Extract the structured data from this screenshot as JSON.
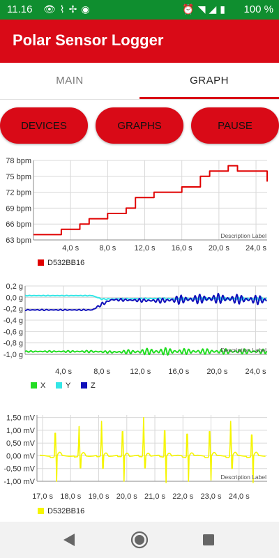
{
  "status_bar": {
    "time": "11.16",
    "battery": "100 %",
    "left_icons": [
      "eye-icon",
      "network-icon",
      "fan-icon",
      "vpn-icon"
    ],
    "right_icons": [
      "alarm-icon",
      "wifi-icon",
      "signal-icon",
      "battery-icon"
    ],
    "color": "#0f8e2f"
  },
  "app_bar": {
    "title": "Polar Sensor Logger",
    "color": "#d90a17"
  },
  "tabs": [
    {
      "label": "MAIN",
      "active": false
    },
    {
      "label": "GRAPH",
      "active": true
    }
  ],
  "buttons": {
    "devices": "DEVICES",
    "graphs": "GRAPHS",
    "pause": "PAUSE"
  },
  "chart_data": [
    {
      "type": "line",
      "x_ticks": [
        "4,0 s",
        "8,0 s",
        "12,0 s",
        "16,0 s",
        "20,0 s",
        "24,0 s"
      ],
      "y_ticks": [
        "63 bpm",
        "66 bpm",
        "69 bpm",
        "72 bpm",
        "75 bpm",
        "78 bpm"
      ],
      "xlim": [
        0,
        25.2
      ],
      "ylim": [
        63,
        78
      ],
      "description_label": "Description Label",
      "legend_position": "bottom-left",
      "series": [
        {
          "name": "D532BB16",
          "color": "#e00000",
          "x": [
            0,
            1,
            2,
            3,
            4,
            5,
            6,
            7,
            8,
            9,
            10,
            11,
            12,
            13,
            14,
            15,
            16,
            17,
            18,
            19,
            20,
            21,
            21.5,
            22,
            23,
            24,
            25.2
          ],
          "y": [
            64,
            64,
            64,
            65,
            65,
            66,
            67,
            67,
            68,
            68,
            69,
            71,
            71,
            72,
            72,
            72,
            73,
            73,
            75,
            76,
            76,
            77,
            77,
            76,
            76,
            76,
            74
          ]
        }
      ]
    },
    {
      "type": "line",
      "x_ticks": [
        "4,0 s",
        "8,0 s",
        "12,0 s",
        "16,0 s",
        "20,0 s",
        "24,0 s"
      ],
      "y_ticks": [
        "-1,0 g",
        "-0,8 g",
        "-0,6 g",
        "-0,4 g",
        "-0,2 g",
        "0,0 g",
        "0,2 g"
      ],
      "xlim": [
        0,
        25.2
      ],
      "ylim": [
        -1.0,
        0.2
      ],
      "description_label": "Description Label",
      "legend_position": "bottom-left",
      "series": [
        {
          "name": "X",
          "color": "#22dd22",
          "x": [
            0,
            7,
            9,
            14,
            17,
            20,
            25.2
          ],
          "y": [
            -0.95,
            -0.95,
            -0.96,
            -0.95,
            -0.95,
            -0.95,
            -0.95
          ],
          "osc": [
            0.01,
            0.02,
            0.02,
            0.07,
            0.05,
            0.05,
            0.04
          ]
        },
        {
          "name": "Y",
          "color": "#33e6e6",
          "x": [
            0,
            7,
            8,
            14,
            16,
            20,
            25.2
          ],
          "y": [
            0.03,
            0.03,
            -0.03,
            -0.02,
            -0.03,
            -0.02,
            -0.03
          ],
          "osc": [
            0.005,
            0.005,
            0.01,
            0.01,
            0.02,
            0.03,
            0.03
          ]
        },
        {
          "name": "Z",
          "color": "#1111bb",
          "x": [
            0,
            7,
            8,
            9,
            14,
            16,
            20,
            25.2
          ],
          "y": [
            -0.22,
            -0.22,
            -0.12,
            -0.04,
            -0.06,
            -0.04,
            -0.02,
            -0.05
          ],
          "osc": [
            0.01,
            0.01,
            0.03,
            0.02,
            0.04,
            0.08,
            0.09,
            0.08
          ]
        }
      ]
    },
    {
      "type": "line",
      "x_ticks": [
        "17,0 s",
        "18,0 s",
        "19,0 s",
        "20,0 s",
        "21,0 s",
        "22,0 s",
        "23,0 s",
        "24,0 s"
      ],
      "y_ticks": [
        "-1,00 mV",
        "-0,50 mV",
        "0,00 mV",
        "0,50 mV",
        "1,00 mV",
        "1,50 mV"
      ],
      "xlim": [
        16.8,
        25.0
      ],
      "ylim": [
        -1.0,
        1.6
      ],
      "description_label": "Description Label",
      "legend_position": "bottom-left",
      "series": [
        {
          "name": "D532BB16",
          "color": "#f5f500",
          "beats": [
            17.45,
            18.3,
            19.1,
            19.85,
            20.6,
            21.35,
            22.15,
            22.95,
            23.7,
            24.45
          ],
          "peaks": [
            1.25,
            1.1,
            1.3,
            1.35,
            1.45,
            1.4,
            1.2,
            1.35,
            1.3,
            1.15
          ],
          "troughs": [
            -1.0,
            -0.95,
            -0.98,
            -1.0,
            -0.95,
            -1.05,
            -1.0,
            -0.95,
            -1.0,
            -1.05
          ]
        }
      ]
    }
  ]
}
